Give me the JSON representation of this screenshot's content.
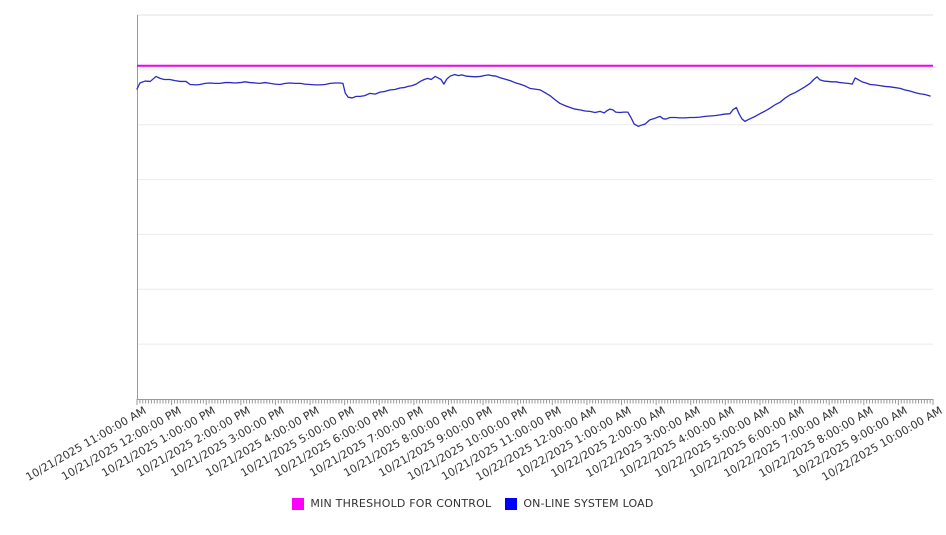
{
  "chart_data": {
    "type": "line",
    "title": "",
    "x_axis": {
      "total_minutes": 1380,
      "major_tick_interval_minutes": 60,
      "minor_tick_interval_minutes": 5,
      "tick_labels": [
        "10/21/2025 11:00:00 AM",
        "10/21/2025 12:00:00 PM",
        "10/21/2025 1:00:00 PM",
        "10/21/2025 2:00:00 PM",
        "10/21/2025 3:00:00 PM",
        "10/21/2025 4:00:00 PM",
        "10/21/2025 5:00:00 PM",
        "10/21/2025 6:00:00 PM",
        "10/21/2025 7:00:00 PM",
        "10/21/2025 8:00:00 PM",
        "10/21/2025 9:00:00 PM",
        "10/21/2025 10:00:00 PM",
        "10/21/2025 11:00:00 PM",
        "10/22/2025 12:00:00 AM",
        "10/22/2025 1:00:00 AM",
        "10/22/2025 2:00:00 AM",
        "10/22/2025 3:00:00 AM",
        "10/22/2025 4:00:00 AM",
        "10/22/2025 5:00:00 AM",
        "10/22/2025 6:00:00 AM",
        "10/22/2025 7:00:00 AM",
        "10/22/2025 8:00:00 AM",
        "10/22/2025 9:00:00 AM",
        "10/22/2025 10:00:00 AM"
      ]
    },
    "y_axis": {
      "labels_visible": false,
      "note": "no tick labels shown; values normalized 0-100 of plot height",
      "range": [
        0,
        100
      ],
      "gridline_divisions": 7
    },
    "series": [
      {
        "name": "MIN THRESHOLD FOR CONTROL",
        "style": "threshold",
        "color": "#ee00ee",
        "value": 86.8
      },
      {
        "name": "ON-LINE SYSTEM LOAD",
        "style": "line",
        "color": "#2b2bc4",
        "points": [
          [
            0,
            80.7
          ],
          [
            5,
            82.3
          ],
          [
            14,
            82.8
          ],
          [
            23,
            82.7
          ],
          [
            33,
            84.0
          ],
          [
            40,
            83.5
          ],
          [
            47,
            83.2
          ],
          [
            57,
            83.2
          ],
          [
            66,
            82.9
          ],
          [
            75,
            82.7
          ],
          [
            85,
            82.7
          ],
          [
            92,
            81.9
          ],
          [
            102,
            81.8
          ],
          [
            109,
            81.9
          ],
          [
            118,
            82.2
          ],
          [
            127,
            82.3
          ],
          [
            135,
            82.2
          ],
          [
            144,
            82.2
          ],
          [
            153,
            82.4
          ],
          [
            161,
            82.4
          ],
          [
            170,
            82.3
          ],
          [
            179,
            82.4
          ],
          [
            187,
            82.6
          ],
          [
            196,
            82.4
          ],
          [
            205,
            82.3
          ],
          [
            213,
            82.2
          ],
          [
            222,
            82.4
          ],
          [
            231,
            82.2
          ],
          [
            239,
            82.0
          ],
          [
            248,
            81.9
          ],
          [
            257,
            82.2
          ],
          [
            265,
            82.3
          ],
          [
            274,
            82.2
          ],
          [
            283,
            82.2
          ],
          [
            291,
            82.0
          ],
          [
            300,
            81.9
          ],
          [
            309,
            81.8
          ],
          [
            317,
            81.8
          ],
          [
            326,
            81.9
          ],
          [
            335,
            82.2
          ],
          [
            343,
            82.3
          ],
          [
            352,
            82.3
          ],
          [
            357,
            82.2
          ],
          [
            361,
            79.7
          ],
          [
            366,
            78.6
          ],
          [
            373,
            78.4
          ],
          [
            380,
            78.8
          ],
          [
            387,
            78.8
          ],
          [
            395,
            79.0
          ],
          [
            404,
            79.6
          ],
          [
            413,
            79.4
          ],
          [
            421,
            79.9
          ],
          [
            430,
            80.1
          ],
          [
            439,
            80.5
          ],
          [
            447,
            80.6
          ],
          [
            456,
            81.0
          ],
          [
            463,
            81.1
          ],
          [
            470,
            81.4
          ],
          [
            477,
            81.6
          ],
          [
            484,
            82.0
          ],
          [
            491,
            82.7
          ],
          [
            498,
            83.2
          ],
          [
            504,
            83.5
          ],
          [
            510,
            83.2
          ],
          [
            517,
            84.0
          ],
          [
            522,
            83.6
          ],
          [
            527,
            83.2
          ],
          [
            532,
            82.0
          ],
          [
            537,
            83.3
          ],
          [
            543,
            84.1
          ],
          [
            551,
            84.5
          ],
          [
            557,
            84.2
          ],
          [
            563,
            84.4
          ],
          [
            570,
            84.1
          ],
          [
            577,
            84.0
          ],
          [
            586,
            83.9
          ],
          [
            595,
            84.0
          ],
          [
            602,
            84.2
          ],
          [
            609,
            84.4
          ],
          [
            615,
            84.2
          ],
          [
            622,
            84.1
          ],
          [
            629,
            83.7
          ],
          [
            638,
            83.3
          ],
          [
            647,
            82.9
          ],
          [
            655,
            82.4
          ],
          [
            664,
            82.0
          ],
          [
            673,
            81.5
          ],
          [
            681,
            80.9
          ],
          [
            690,
            80.7
          ],
          [
            699,
            80.5
          ],
          [
            707,
            79.8
          ],
          [
            716,
            79.0
          ],
          [
            725,
            77.9
          ],
          [
            733,
            77.0
          ],
          [
            742,
            76.4
          ],
          [
            751,
            75.9
          ],
          [
            759,
            75.5
          ],
          [
            768,
            75.3
          ],
          [
            777,
            75.0
          ],
          [
            785,
            74.9
          ],
          [
            794,
            74.6
          ],
          [
            803,
            74.9
          ],
          [
            810,
            74.5
          ],
          [
            815,
            75.1
          ],
          [
            820,
            75.5
          ],
          [
            825,
            75.3
          ],
          [
            830,
            74.7
          ],
          [
            837,
            74.6
          ],
          [
            844,
            74.7
          ],
          [
            851,
            74.7
          ],
          [
            856,
            73.4
          ],
          [
            862,
            71.6
          ],
          [
            869,
            71.0
          ],
          [
            876,
            71.4
          ],
          [
            881,
            71.6
          ],
          [
            886,
            72.3
          ],
          [
            889,
            72.7
          ],
          [
            896,
            73.0
          ],
          [
            903,
            73.4
          ],
          [
            907,
            73.6
          ],
          [
            912,
            73.0
          ],
          [
            917,
            72.9
          ],
          [
            924,
            73.3
          ],
          [
            933,
            73.3
          ],
          [
            941,
            73.2
          ],
          [
            950,
            73.2
          ],
          [
            959,
            73.3
          ],
          [
            967,
            73.3
          ],
          [
            976,
            73.4
          ],
          [
            985,
            73.6
          ],
          [
            993,
            73.7
          ],
          [
            1002,
            73.8
          ],
          [
            1011,
            74.0
          ],
          [
            1019,
            74.2
          ],
          [
            1028,
            74.3
          ],
          [
            1033,
            75.3
          ],
          [
            1039,
            75.9
          ],
          [
            1044,
            74.2
          ],
          [
            1049,
            72.9
          ],
          [
            1054,
            72.3
          ],
          [
            1059,
            72.7
          ],
          [
            1066,
            73.2
          ],
          [
            1073,
            73.7
          ],
          [
            1080,
            74.3
          ],
          [
            1089,
            75.0
          ],
          [
            1097,
            75.7
          ],
          [
            1106,
            76.6
          ],
          [
            1115,
            77.3
          ],
          [
            1123,
            78.3
          ],
          [
            1132,
            79.2
          ],
          [
            1141,
            79.8
          ],
          [
            1149,
            80.5
          ],
          [
            1158,
            81.3
          ],
          [
            1167,
            82.2
          ],
          [
            1174,
            83.3
          ],
          [
            1179,
            83.9
          ],
          [
            1184,
            83.1
          ],
          [
            1191,
            82.8
          ],
          [
            1198,
            82.7
          ],
          [
            1205,
            82.6
          ],
          [
            1212,
            82.6
          ],
          [
            1219,
            82.4
          ],
          [
            1226,
            82.3
          ],
          [
            1233,
            82.2
          ],
          [
            1240,
            82.0
          ],
          [
            1245,
            83.6
          ],
          [
            1250,
            83.2
          ],
          [
            1257,
            82.6
          ],
          [
            1264,
            82.3
          ],
          [
            1271,
            81.9
          ],
          [
            1279,
            81.8
          ],
          [
            1288,
            81.6
          ],
          [
            1297,
            81.4
          ],
          [
            1305,
            81.3
          ],
          [
            1314,
            81.1
          ],
          [
            1323,
            80.9
          ],
          [
            1331,
            80.5
          ],
          [
            1340,
            80.2
          ],
          [
            1349,
            79.8
          ],
          [
            1357,
            79.5
          ],
          [
            1366,
            79.3
          ],
          [
            1375,
            78.9
          ]
        ]
      }
    ],
    "legend": {
      "position": "bottom",
      "entries": [
        {
          "label": "MIN THRESHOLD FOR CONTROL",
          "color": "#ff00ff"
        },
        {
          "label": "ON-LINE SYSTEM LOAD",
          "color": "#0000ff"
        }
      ]
    }
  }
}
